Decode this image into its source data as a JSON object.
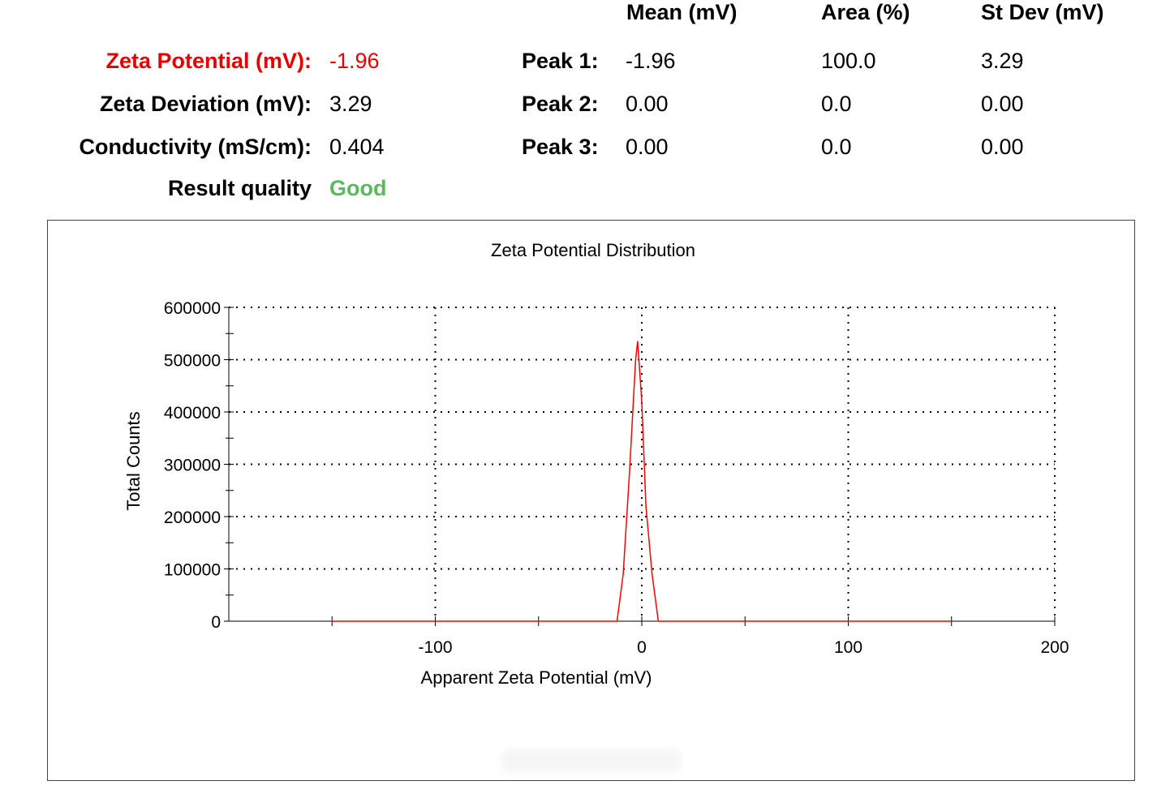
{
  "summary": {
    "zeta_potential": {
      "label": "Zeta Potential (mV):",
      "value": "-1.96"
    },
    "zeta_deviation": {
      "label": "Zeta Deviation (mV):",
      "value": "3.29"
    },
    "conductivity": {
      "label": "Conductivity (mS/cm):",
      "value": "0.404"
    },
    "result_quality": {
      "label": "Result quality",
      "value": "Good"
    }
  },
  "peaks_table": {
    "headers": {
      "mean": "Mean (mV)",
      "area": "Area (%)",
      "stdev": "St Dev (mV)"
    },
    "rows": [
      {
        "label": "Peak 1:",
        "mean": "-1.96",
        "area": "100.0",
        "stdev": "3.29"
      },
      {
        "label": "Peak 2:",
        "mean": "0.00",
        "area": "0.0",
        "stdev": "0.00"
      },
      {
        "label": "Peak 3:",
        "mean": "0.00",
        "area": "0.0",
        "stdev": "0.00"
      }
    ]
  },
  "colors": {
    "accent_red": "#e60000",
    "good_green": "#5cb85c",
    "series": "#ff0000"
  },
  "chart_data": {
    "type": "line",
    "title": "Zeta Potential Distribution",
    "xlabel": "Apparent Zeta Potential (mV)",
    "ylabel": "Total Counts",
    "xlim": [
      -200,
      200
    ],
    "ylim": [
      0,
      600000
    ],
    "x_ticks": [
      -100,
      0,
      100,
      200
    ],
    "y_ticks": [
      0,
      100000,
      200000,
      300000,
      400000,
      500000,
      600000
    ],
    "grid": true,
    "series": [
      {
        "x": [
          -150,
          -100,
          -50,
          -12,
          -9,
          -6,
          -3,
          -2,
          0,
          2,
          5,
          8,
          50,
          100,
          150
        ],
        "y": [
          0,
          0,
          0,
          0,
          90000,
          280000,
          500000,
          535000,
          420000,
          220000,
          90000,
          0,
          0,
          0,
          0
        ]
      }
    ]
  }
}
